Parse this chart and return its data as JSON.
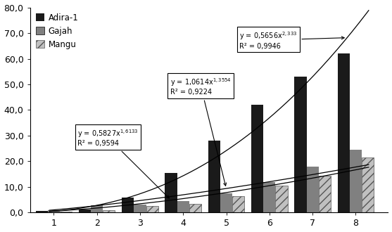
{
  "x_labels": [
    1,
    2,
    3,
    4,
    5,
    6,
    7,
    8
  ],
  "adira1": [
    0.7,
    1.2,
    6.0,
    15.5,
    28.0,
    42.0,
    53.0,
    62.0
  ],
  "gajah": [
    0.8,
    2.8,
    3.2,
    4.5,
    7.5,
    12.0,
    18.0,
    24.5
  ],
  "mangu": [
    0.5,
    1.0,
    2.5,
    3.5,
    6.5,
    10.5,
    14.5,
    21.5
  ],
  "adira1_color": "#1a1a1a",
  "gajah_color": "#808080",
  "mangu_hatch": "///",
  "mangu_facecolor": "#c0c0c0",
  "ylim": [
    0,
    80
  ],
  "yticks": [
    0.0,
    10.0,
    20.0,
    30.0,
    40.0,
    50.0,
    60.0,
    70.0,
    80.0
  ],
  "bg_color": "#ffffff",
  "legend_adira1": "Adira-1",
  "legend_gajah": "Gajah",
  "legend_mangu": "Mangu",
  "adira1_coef": 0.5827,
  "adira1_exp": 1.6133,
  "gajah_coef": 1.0614,
  "gajah_exp": 1.3554,
  "mangu_coef": 0.5656,
  "mangu_exp": 2.333,
  "bar_width": 0.28,
  "figwidth": 5.57,
  "figheight": 3.3,
  "dpi": 100
}
